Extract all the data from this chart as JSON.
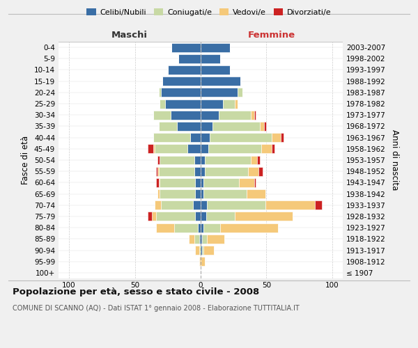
{
  "age_groups": [
    "100+",
    "95-99",
    "90-94",
    "85-89",
    "80-84",
    "75-79",
    "70-74",
    "65-69",
    "60-64",
    "55-59",
    "50-54",
    "45-49",
    "40-44",
    "35-39",
    "30-34",
    "25-29",
    "20-24",
    "15-19",
    "10-14",
    "5-9",
    "0-4"
  ],
  "birth_years": [
    "≤ 1907",
    "1908-1912",
    "1913-1917",
    "1918-1922",
    "1923-1927",
    "1928-1932",
    "1933-1937",
    "1938-1942",
    "1943-1947",
    "1948-1952",
    "1953-1957",
    "1958-1962",
    "1963-1967",
    "1968-1972",
    "1973-1977",
    "1978-1982",
    "1983-1987",
    "1988-1992",
    "1993-1997",
    "1998-2002",
    "2003-2007"
  ],
  "maschi": {
    "celibi": [
      0,
      0,
      0,
      1,
      2,
      4,
      6,
      4,
      4,
      5,
      5,
      10,
      8,
      18,
      23,
      27,
      30,
      29,
      25,
      17,
      22
    ],
    "coniugati": [
      0,
      0,
      1,
      4,
      18,
      30,
      24,
      27,
      27,
      27,
      26,
      25,
      28,
      14,
      13,
      4,
      2,
      0,
      0,
      0,
      0
    ],
    "vedovi": [
      0,
      1,
      3,
      4,
      14,
      3,
      5,
      2,
      1,
      1,
      0,
      1,
      0,
      0,
      0,
      0,
      0,
      0,
      0,
      0,
      0
    ],
    "divorziati": [
      0,
      0,
      0,
      0,
      0,
      3,
      0,
      0,
      2,
      1,
      2,
      4,
      0,
      0,
      0,
      0,
      0,
      0,
      0,
      0,
      0
    ]
  },
  "femmine": {
    "nubili": [
      0,
      0,
      1,
      1,
      2,
      4,
      5,
      2,
      2,
      3,
      3,
      6,
      7,
      9,
      14,
      17,
      28,
      30,
      22,
      15,
      22
    ],
    "coniugate": [
      0,
      0,
      1,
      4,
      13,
      22,
      44,
      33,
      27,
      33,
      35,
      40,
      47,
      36,
      24,
      9,
      4,
      0,
      0,
      0,
      0
    ],
    "vedove": [
      0,
      3,
      8,
      13,
      44,
      44,
      38,
      14,
      12,
      8,
      5,
      8,
      7,
      3,
      3,
      2,
      0,
      0,
      0,
      0,
      0
    ],
    "divorziate": [
      0,
      0,
      0,
      0,
      0,
      0,
      5,
      0,
      1,
      3,
      2,
      2,
      2,
      2,
      1,
      0,
      0,
      0,
      0,
      0,
      0
    ]
  },
  "colors": {
    "celibi": "#3a6ea5",
    "coniugati": "#c8d9a4",
    "vedovi": "#f5c97a",
    "divorziati": "#cc2222"
  },
  "xlim": [
    -108,
    108
  ],
  "xticks": [
    -100,
    -50,
    0,
    50,
    100
  ],
  "xticklabels": [
    "100",
    "50",
    "0",
    "50",
    "100"
  ],
  "title": "Popolazione per età, sesso e stato civile - 2008",
  "subtitle": "COMUNE DI SCANNO (AQ) - Dati ISTAT 1° gennaio 2008 - Elaborazione TUTTITALIA.IT",
  "ylabel_left": "Fasce di età",
  "ylabel_right": "Anni di nascita",
  "maschi_label": "Maschi",
  "femmine_label": "Femmine",
  "legend_labels": [
    "Celibi/Nubili",
    "Coniugati/e",
    "Vedovi/e",
    "Divorziati/e"
  ],
  "background_color": "#f0f0f0",
  "plot_bg_color": "#ffffff"
}
